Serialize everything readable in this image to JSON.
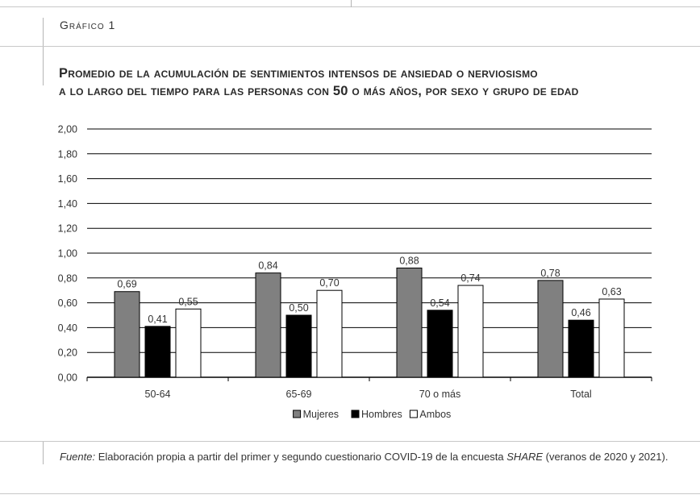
{
  "figure_label": "Gráfico 1",
  "title_line1": "Promedio de la acumulación de sentimientos intensos de ansiedad o nerviosismo",
  "title_line2": "a lo largo del tiempo para las personas con 50 o más años, por sexo y grupo de edad",
  "source": {
    "prefix": "Fuente:",
    "text_before": " Elaboración propia a partir del primer y segundo cuestionario COVID-19 de la encuesta ",
    "survey": "SHARE",
    "text_after": " (veranos de 2020 y 2021)."
  },
  "chart_data": {
    "type": "bar",
    "categories": [
      "50-64",
      "65-69",
      "70 o más",
      "Total"
    ],
    "series": [
      {
        "name": "Mujeres",
        "color": "#808080",
        "values": [
          0.69,
          0.84,
          0.88,
          0.78
        ],
        "labels": [
          "0,69",
          "0,84",
          "0,88",
          "0,78"
        ]
      },
      {
        "name": "Hombres",
        "color": "#000000",
        "values": [
          0.41,
          0.5,
          0.54,
          0.46
        ],
        "labels": [
          "0,41",
          "0,50",
          "0,54",
          "0,46"
        ]
      },
      {
        "name": "Ambos",
        "color": "#ffffff",
        "values": [
          0.55,
          0.7,
          0.74,
          0.63
        ],
        "labels": [
          "0,55",
          "0,70",
          "0,74",
          "0,63"
        ]
      }
    ],
    "ylim": [
      0,
      2
    ],
    "yticks": [
      0,
      0.2,
      0.4,
      0.6,
      0.8,
      1.0,
      1.2,
      1.4,
      1.6,
      1.8,
      2.0
    ],
    "ytick_labels": [
      "0,00",
      "0,20",
      "0,40",
      "0,60",
      "0,80",
      "1,00",
      "1,20",
      "1,40",
      "1,60",
      "1,80",
      "2,00"
    ],
    "grid": true,
    "legend_position": "bottom"
  }
}
